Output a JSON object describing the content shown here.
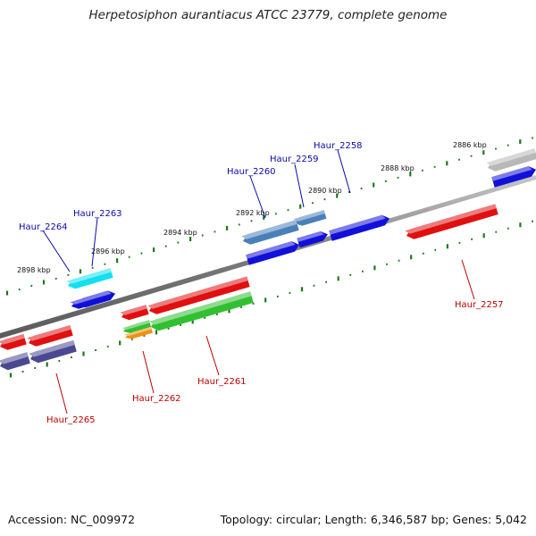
{
  "title": "Herpetosiphon aurantiacus ATCC 23779, complete genome",
  "footer": {
    "accession": "Accession: NC_009972",
    "summary": "Topology: circular; Length: 6,346,587 bp; Genes: 5,042"
  },
  "scale_labels": [
    "2886 kbp",
    "2888 kbp",
    "2890 kbp",
    "2892 kbp",
    "2894 kbp",
    "2896 kbp",
    "2898 kbp"
  ],
  "gene_labels": {
    "above": [
      "Haur_2258",
      "Haur_2259",
      "Haur_2260",
      "Haur_2263",
      "Haur_2264"
    ],
    "below": [
      "Haur_2257",
      "Haur_2261",
      "Haur_2262",
      "Haur_2265"
    ]
  },
  "colors": {
    "backbone": "#8a8a8a",
    "tick_major": "#1a7a1a",
    "tick_minor": "#1a7a1a",
    "gene_red": "#e01010",
    "gene_blue": "#1010d8",
    "gene_steel": "#4a80b8",
    "gene_cyan": "#10e0f0",
    "gene_gray": "#b8b8b8",
    "gene_green": "#30c030",
    "gene_orange": "#f09010",
    "gene_slate": "#4a4890",
    "label_above": "#0a0aa8",
    "label_below": "#c00000"
  }
}
